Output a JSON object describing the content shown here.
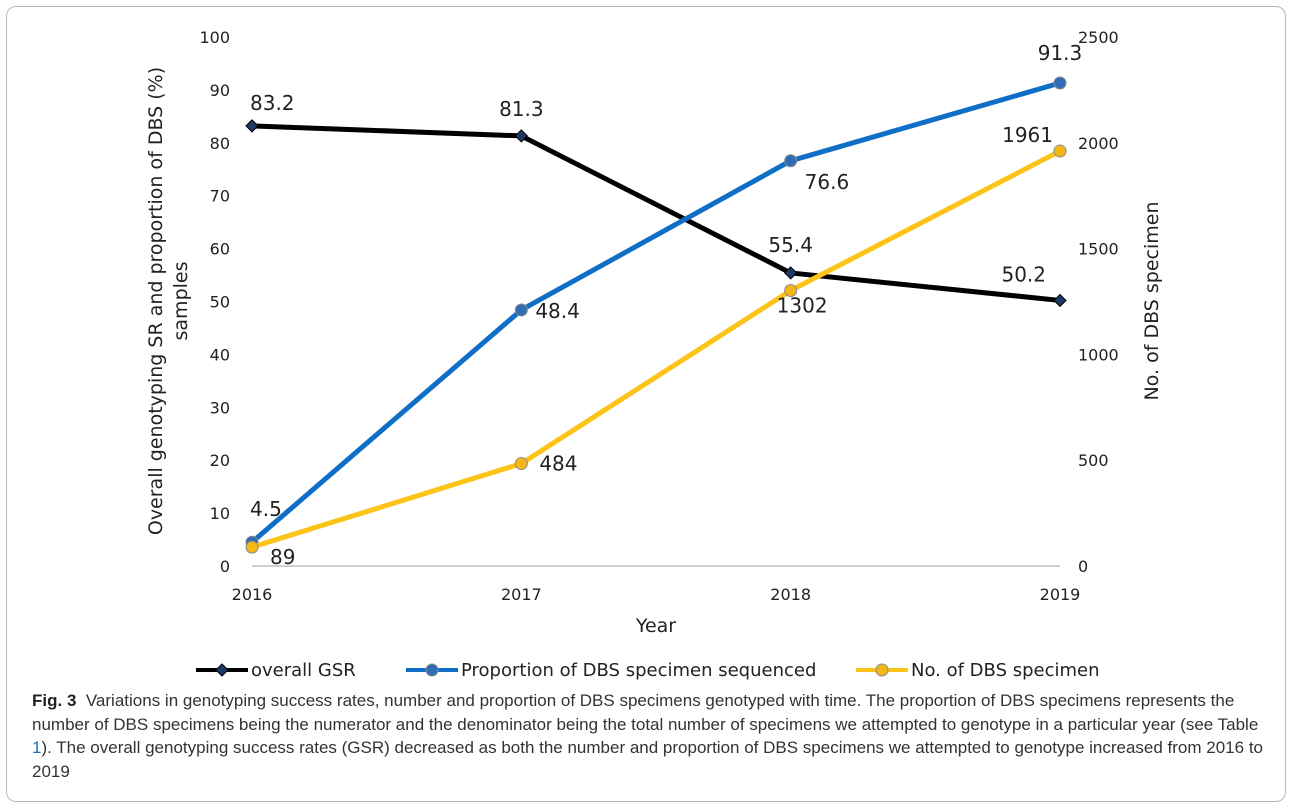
{
  "chart_data": {
    "type": "line",
    "categories": [
      "2016",
      "2017",
      "2018",
      "2019"
    ],
    "xlabel": "Year",
    "ylabel_left": [
      "Overall genotyping SR and proportion of DBS (%)",
      "samples"
    ],
    "ylabel_right": "No. of DBS specimen",
    "y_left": {
      "range": [
        0,
        100
      ],
      "ticks": [
        "0",
        "10",
        "20",
        "30",
        "40",
        "50",
        "60",
        "70",
        "80",
        "90",
        "100"
      ]
    },
    "y_right": {
      "range": [
        0,
        2500
      ],
      "ticks": [
        "0",
        "500",
        "1000",
        "1500",
        "2000",
        "2500"
      ]
    },
    "grid": false,
    "legend_position": "bottom",
    "series": [
      {
        "name": "overall GSR",
        "axis": "left",
        "values": [
          83.2,
          81.3,
          55.4,
          50.2
        ],
        "labels": [
          "83.2",
          "81.3",
          "55.4",
          "50.2"
        ],
        "color": "#000000",
        "marker": "diamond",
        "marker_color": "#1f3864"
      },
      {
        "name": "Proportion of DBS specimen sequenced",
        "axis": "left",
        "values": [
          4.5,
          48.4,
          76.6,
          91.3
        ],
        "labels": [
          "4.5",
          "48.4",
          "76.6",
          "91.3"
        ],
        "color": "#0f6fc6",
        "marker": "circle",
        "marker_color": "#2f6db5"
      },
      {
        "name": "No. of DBS specimen",
        "axis": "right",
        "values": [
          89,
          484,
          1302,
          1961
        ],
        "labels": [
          "89",
          "484",
          "1302",
          "1961"
        ],
        "color": "#fcc419",
        "marker": "circle",
        "marker_color": "#f4b718"
      }
    ]
  },
  "caption": {
    "fig_label": "Fig. 3",
    "text_before_ref": "Variations in genotyping success rates, number and proportion of DBS specimens genotyped with time. The proportion of DBS specimens represents the number of DBS specimens being the numerator and the denominator being the total number of specimens we attempted to genotype in a particular year (see Table ",
    "ref": "1",
    "text_after_ref": "). The overall genotyping success rates (GSR) decreased as both the number and proportion of DBS specimens we attempted to genotype increased from 2016 to 2019"
  }
}
